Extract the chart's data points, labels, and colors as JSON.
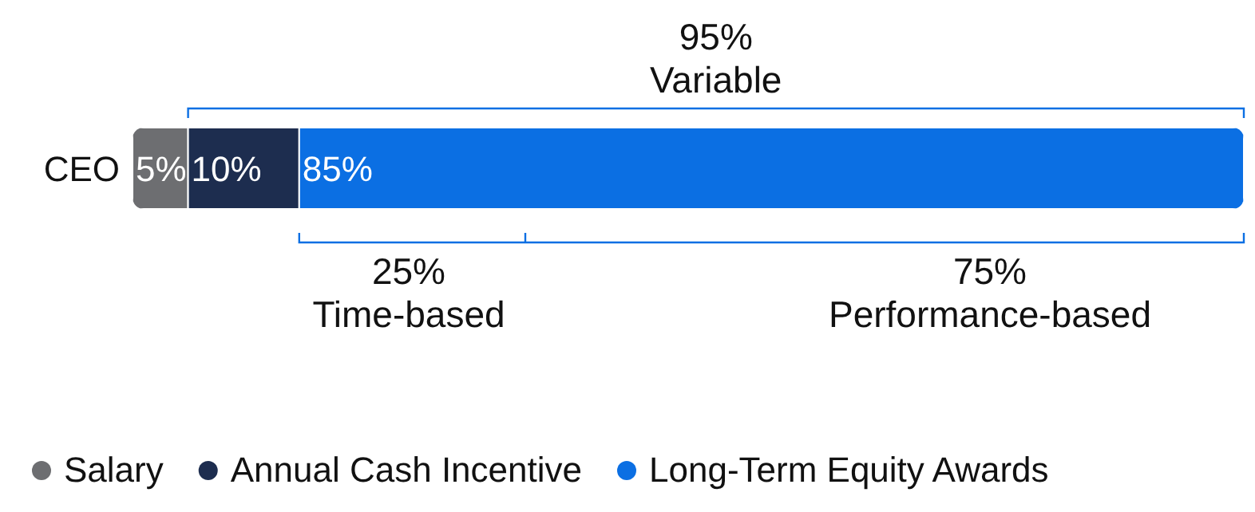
{
  "chart_data": {
    "type": "bar",
    "orientation": "horizontal",
    "stacked": true,
    "categories": [
      "CEO"
    ],
    "series": [
      {
        "name": "Salary",
        "color": "#6d6e71",
        "values": [
          5
        ],
        "value_labels": [
          "5%"
        ]
      },
      {
        "name": "Annual Cash Incentive",
        "color": "#1d2d4f",
        "values": [
          10
        ],
        "value_labels": [
          "10%"
        ]
      },
      {
        "name": "Long-Term Equity Awards",
        "color": "#0b6fe3",
        "values": [
          85
        ],
        "value_labels": [
          "85%"
        ]
      }
    ],
    "legend": "bottom",
    "tick_labels": "y",
    "annotations": [
      "95%\nVariable",
      "25%\nTime-based",
      "75%\nPerformance-based"
    ]
  }
}
